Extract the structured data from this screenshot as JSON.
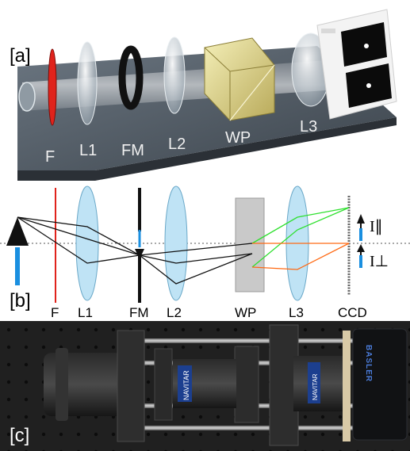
{
  "panel_a": {
    "label": "[a]",
    "components": [
      "F",
      "L1",
      "FM",
      "L2",
      "WP",
      "L3"
    ]
  },
  "panel_b": {
    "label": "[b]",
    "components": [
      "F",
      "L1",
      "FM",
      "L2",
      "WP",
      "L3",
      "CCD"
    ],
    "intensity_parallel": "I∥",
    "intensity_perpendicular": "I⊥"
  },
  "panel_c": {
    "label": "[c]",
    "camera_brand": "BASLER",
    "lens_brand_1": "NAVITAR",
    "lens_brand_2": "NAVITAR"
  },
  "colors": {
    "filter_red": "#e0231c",
    "lens_blue": "#bfe3f5",
    "wp_gray": "#c9c9c9",
    "ray_green": "#2ee02e",
    "ray_orange": "#ff6a14",
    "arrow_blue": "#1a8fe0",
    "stage_gray": "#4a5560"
  }
}
